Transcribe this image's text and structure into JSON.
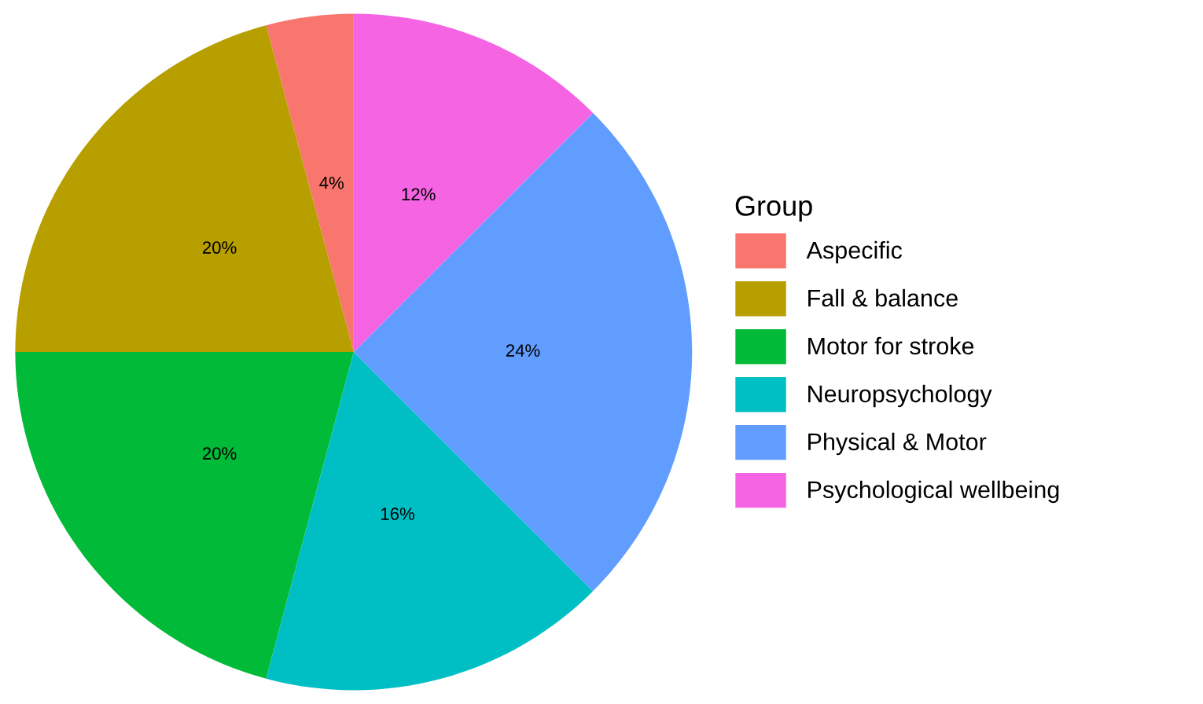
{
  "chart_data": {
    "type": "pie",
    "legend_title": "Group",
    "legend": "right",
    "categories": [
      "Aspecific",
      "Fall & balance",
      "Motor for stroke",
      "Neuropsychology",
      "Physical & Motor",
      "Psychological wellbeing"
    ],
    "values": [
      4,
      20,
      20,
      16,
      24,
      12
    ],
    "value_labels": [
      "4%",
      "20%",
      "20%",
      "16%",
      "24%",
      "12%"
    ],
    "colors": [
      "#f8766d",
      "#b79f00",
      "#00ba38",
      "#00bfc4",
      "#619cff",
      "#f564e3"
    ]
  }
}
